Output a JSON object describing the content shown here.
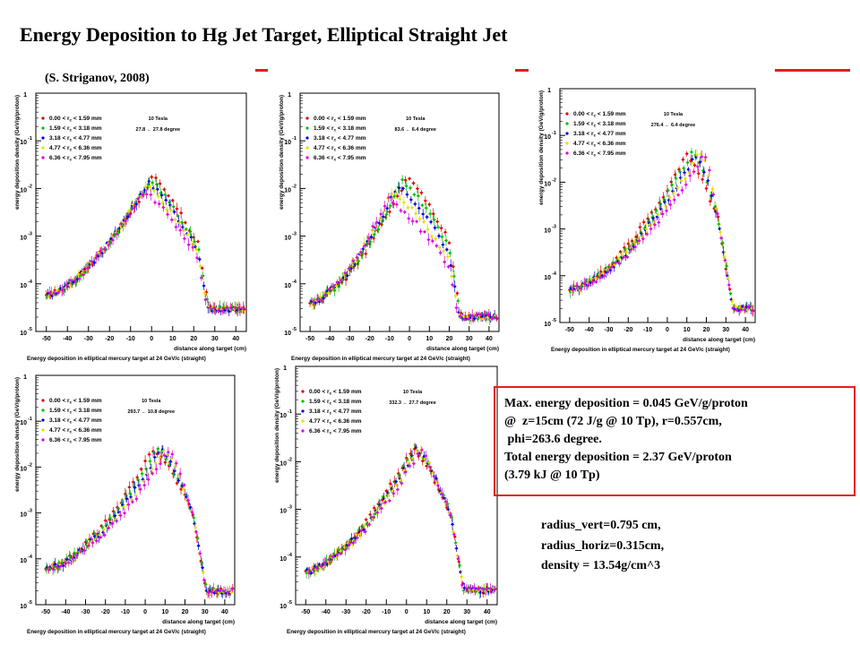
{
  "page": {
    "title": "Energy Deposition to Hg Jet Target, Elliptical Straight Jet",
    "credit": "(S. Striganov, 2008)",
    "accent_color": "#e02020"
  },
  "info_box": {
    "lines": [
      "Max. energy deposition = 0.045 GeV/g/proton",
      "@  z=15cm (72 J/g @ 10 Tp), r=0.557cm,",
      " phi=263.6 degree.",
      "Total energy deposition = 2.37 GeV/proton",
      "(3.79 kJ @ 10 Tp)"
    ]
  },
  "parameters": {
    "lines": [
      "radius_vert=0.795 cm,",
      "radius_horiz=0.315cm,",
      "density = 13.54g/cm^3"
    ]
  },
  "chart_data": [
    {
      "type": "scatter",
      "field": "10 Tesla",
      "angle": "27.8 ← 27.8 degree",
      "xlabel": "distance along target (cm)",
      "ylabel": "energy deposition density (GeV/g/proton)",
      "caption": "Energy deposition in elliptical mercury target at 24 GeV/c (straight)",
      "yscale": "log",
      "xlim": [
        -55,
        45
      ],
      "ylim": [
        1e-05,
        1
      ],
      "x_ticks": [
        "-50",
        "-40",
        "-30",
        "-20",
        "-10",
        "0",
        "10",
        "20",
        "30",
        "40"
      ],
      "y_ticks": [
        {
          "base": "10",
          "exp": "-5"
        },
        {
          "base": "10",
          "exp": "-4"
        },
        {
          "base": "10",
          "exp": "-3"
        },
        {
          "base": "10",
          "exp": "-2"
        },
        {
          "base": "10",
          "exp": "-1"
        },
        {
          "base": "1",
          "exp": ""
        }
      ],
      "legend": [
        {
          "label": "0.00 < r",
          "sub": "c",
          "range": " < 1.59 mm",
          "color": "#e00000"
        },
        {
          "label": "1.59 < r",
          "sub": "c",
          "range": " < 3.18 mm",
          "color": "#00c000"
        },
        {
          "label": "3.18 < r",
          "sub": "c",
          "range": " < 4.77 mm",
          "color": "#0000e0"
        },
        {
          "label": "4.77 < r",
          "sub": "c",
          "range": " < 6.36 mm",
          "color": "#e0e000"
        },
        {
          "label": "6.36 < r",
          "sub": "c",
          "range": " < 7.95 mm",
          "color": "#e000e0"
        }
      ],
      "series": [
        {
          "name": "0.00 < rc < 1.59 mm",
          "peak_x": 0,
          "peak_y": 0.017
        },
        {
          "name": "1.59 < rc < 3.18 mm",
          "peak_x": -1,
          "peak_y": 0.015
        },
        {
          "name": "3.18 < rc < 4.77 mm",
          "peak_x": -2,
          "peak_y": 0.013
        },
        {
          "name": "4.77 < rc < 6.36 mm",
          "peak_x": -3,
          "peak_y": 0.011
        },
        {
          "name": "6.36 < rc < 7.95 mm",
          "peak_x": -4,
          "peak_y": 0.009
        }
      ],
      "baseline_y": 6e-05,
      "tail_y": 3e-05,
      "drop_x": 22
    },
    {
      "type": "scatter",
      "field": "10 Tesla",
      "angle": "83.6 ← 6.4 degree",
      "xlabel": "distance along target (cm)",
      "ylabel": "energy deposition density (GeV/g/proton)",
      "caption": "Energy deposition in elliptical mercury target at 24 GeV/c (straight)",
      "yscale": "log",
      "xlim": [
        -55,
        45
      ],
      "ylim": [
        1e-05,
        1
      ],
      "x_ticks": [
        "-50",
        "-40",
        "-30",
        "-20",
        "-10",
        "0",
        "10",
        "20",
        "30",
        "40"
      ],
      "y_ticks": [
        {
          "base": "10",
          "exp": "-5"
        },
        {
          "base": "10",
          "exp": "-4"
        },
        {
          "base": "10",
          "exp": "-3"
        },
        {
          "base": "10",
          "exp": "-2"
        },
        {
          "base": "10",
          "exp": "-1"
        },
        {
          "base": "1",
          "exp": ""
        }
      ],
      "legend": [
        {
          "label": "0.00 < r",
          "sub": "c",
          "range": " < 1.59 mm",
          "color": "#e00000"
        },
        {
          "label": "1.59 < r",
          "sub": "c",
          "range": " < 3.18 mm",
          "color": "#00c000"
        },
        {
          "label": "3.18 < r",
          "sub": "c",
          "range": " < 4.77 mm",
          "color": "#0000e0"
        },
        {
          "label": "4.77 < r",
          "sub": "c",
          "range": " < 6.36 mm",
          "color": "#e0e000"
        },
        {
          "label": "6.36 < r",
          "sub": "c",
          "range": " < 7.95 mm",
          "color": "#e000e0"
        }
      ],
      "series": [
        {
          "name": "0.00 < rc < 1.59 mm",
          "peak_x": -1,
          "peak_y": 0.018
        },
        {
          "name": "1.59 < rc < 3.18 mm",
          "peak_x": -4,
          "peak_y": 0.014
        },
        {
          "name": "3.18 < rc < 4.77 mm",
          "peak_x": -6,
          "peak_y": 0.011
        },
        {
          "name": "4.77 < rc < 6.36 mm",
          "peak_x": -9,
          "peak_y": 0.008
        },
        {
          "name": "6.36 < rc < 7.95 mm",
          "peak_x": -11,
          "peak_y": 0.006
        }
      ],
      "baseline_y": 4e-05,
      "tail_y": 2e-05,
      "drop_x": 20
    },
    {
      "type": "scatter",
      "field": "10 Tesla",
      "angle": "276.4 ← 6.4 degree",
      "xlabel": "distance along target (cm)",
      "ylabel": "energy deposition density (GeV/g/proton)",
      "caption": "Energy deposition in elliptical mercury target at 24 GeV/c (straight)",
      "yscale": "log",
      "xlim": [
        -55,
        45
      ],
      "ylim": [
        1e-05,
        1
      ],
      "x_ticks": [
        "-50",
        "-40",
        "-30",
        "-20",
        "-10",
        "0",
        "10",
        "20",
        "30",
        "40"
      ],
      "y_ticks": [
        {
          "base": "10",
          "exp": "-5"
        },
        {
          "base": "10",
          "exp": "-4"
        },
        {
          "base": "10",
          "exp": "-3"
        },
        {
          "base": "10",
          "exp": "-2"
        },
        {
          "base": "10",
          "exp": "-1"
        },
        {
          "base": "1",
          "exp": ""
        }
      ],
      "legend": [
        {
          "label": "0.00 < r",
          "sub": "c",
          "range": " < 1.59 mm",
          "color": "#e00000"
        },
        {
          "label": "1.59 < r",
          "sub": "c",
          "range": " < 3.18 mm",
          "color": "#00c000"
        },
        {
          "label": "3.18 < r",
          "sub": "c",
          "range": " < 4.77 mm",
          "color": "#0000e0"
        },
        {
          "label": "4.77 < r",
          "sub": "c",
          "range": " < 6.36 mm",
          "color": "#e0e000"
        },
        {
          "label": "6.36 < r",
          "sub": "c",
          "range": " < 7.95 mm",
          "color": "#e000e0"
        }
      ],
      "series": [
        {
          "name": "0.00 < rc < 1.59 mm",
          "peak_x": 10,
          "peak_y": 0.04
        },
        {
          "name": "1.59 < rc < 3.18 mm",
          "peak_x": 13,
          "peak_y": 0.045
        },
        {
          "name": "3.18 < rc < 4.77 mm",
          "peak_x": 15,
          "peak_y": 0.04
        },
        {
          "name": "4.77 < rc < 6.36 mm",
          "peak_x": 17,
          "peak_y": 0.045
        },
        {
          "name": "6.36 < rc < 7.95 mm",
          "peak_x": 19,
          "peak_y": 0.04
        }
      ],
      "baseline_y": 5e-05,
      "tail_y": 2e-05,
      "drop_x": 26
    },
    {
      "type": "scatter",
      "field": "10 Tesla",
      "angle": "293.7 ← 10.8 degree",
      "xlabel": "distance along target (cm)",
      "ylabel": "energy deposition density (GeV/g/proton)",
      "caption": "Energy deposition in elliptical mercury target at 24 GeV/c (straight)",
      "yscale": "log",
      "xlim": [
        -55,
        45
      ],
      "ylim": [
        1e-05,
        1
      ],
      "x_ticks": [
        "-50",
        "-40",
        "-30",
        "-20",
        "-10",
        "0",
        "10",
        "20",
        "30",
        "40"
      ],
      "y_ticks": [
        {
          "base": "10",
          "exp": "-5"
        },
        {
          "base": "10",
          "exp": "-4"
        },
        {
          "base": "10",
          "exp": "-3"
        },
        {
          "base": "10",
          "exp": "-2"
        },
        {
          "base": "10",
          "exp": "-1"
        },
        {
          "base": "1",
          "exp": ""
        }
      ],
      "legend": [
        {
          "label": "0.00 < r",
          "sub": "c",
          "range": " < 1.59 mm",
          "color": "#e00000"
        },
        {
          "label": "1.59 < r",
          "sub": "c",
          "range": " < 3.18 mm",
          "color": "#00c000"
        },
        {
          "label": "3.18 < r",
          "sub": "c",
          "range": " < 4.77 mm",
          "color": "#0000e0"
        },
        {
          "label": "4.77 < r",
          "sub": "c",
          "range": " < 6.36 mm",
          "color": "#e0e000"
        },
        {
          "label": "6.36 < r",
          "sub": "c",
          "range": " < 7.95 mm",
          "color": "#e000e0"
        }
      ],
      "series": [
        {
          "name": "0.00 < rc < 1.59 mm",
          "peak_x": 4,
          "peak_y": 0.025
        },
        {
          "name": "1.59 < rc < 3.18 mm",
          "peak_x": 6,
          "peak_y": 0.025
        },
        {
          "name": "3.18 < rc < 4.77 mm",
          "peak_x": 8,
          "peak_y": 0.024
        },
        {
          "name": "4.77 < rc < 6.36 mm",
          "peak_x": 10,
          "peak_y": 0.024
        },
        {
          "name": "6.36 < rc < 7.95 mm",
          "peak_x": 12,
          "peak_y": 0.023
        }
      ],
      "baseline_y": 6e-05,
      "tail_y": 2e-05,
      "drop_x": 24
    },
    {
      "type": "scatter",
      "field": "10 Tesla",
      "angle": "332.3 ← 27.7 degree",
      "xlabel": "distance along target (cm)",
      "ylabel": "energy deposition density (GeV/g/proton)",
      "caption": "Energy deposition in elliptical mercury target at 24 GeV/c (straight)",
      "yscale": "log",
      "xlim": [
        -55,
        45
      ],
      "ylim": [
        1e-05,
        1
      ],
      "x_ticks": [
        "-50",
        "-40",
        "-30",
        "-20",
        "-10",
        "0",
        "10",
        "20",
        "30",
        "40"
      ],
      "y_ticks": [
        {
          "base": "10",
          "exp": "-5"
        },
        {
          "base": "10",
          "exp": "-4"
        },
        {
          "base": "10",
          "exp": "-3"
        },
        {
          "base": "10",
          "exp": "-2"
        },
        {
          "base": "10",
          "exp": "-1"
        },
        {
          "base": "1",
          "exp": ""
        }
      ],
      "legend": [
        {
          "label": "0.00 < r",
          "sub": "c",
          "range": " < 1.59 mm",
          "color": "#e00000"
        },
        {
          "label": "1.59 < r",
          "sub": "c",
          "range": " < 3.18 mm",
          "color": "#00c000"
        },
        {
          "label": "3.18 < r",
          "sub": "c",
          "range": " < 4.77 mm",
          "color": "#0000e0"
        },
        {
          "label": "4.77 < r",
          "sub": "c",
          "range": " < 6.36 mm",
          "color": "#e0e000"
        },
        {
          "label": "6.36 < r",
          "sub": "c",
          "range": " < 7.95 mm",
          "color": "#e000e0"
        }
      ],
      "series": [
        {
          "name": "0.00 < rc < 1.59 mm",
          "peak_x": 3,
          "peak_y": 0.02
        },
        {
          "name": "1.59 < rc < 3.18 mm",
          "peak_x": 4,
          "peak_y": 0.02
        },
        {
          "name": "3.18 < rc < 4.77 mm",
          "peak_x": 5,
          "peak_y": 0.019
        },
        {
          "name": "4.77 < rc < 6.36 mm",
          "peak_x": 6,
          "peak_y": 0.018
        },
        {
          "name": "6.36 < rc < 7.95 mm",
          "peak_x": 7,
          "peak_y": 0.017
        }
      ],
      "baseline_y": 5e-05,
      "tail_y": 2e-05,
      "drop_x": 22
    }
  ]
}
